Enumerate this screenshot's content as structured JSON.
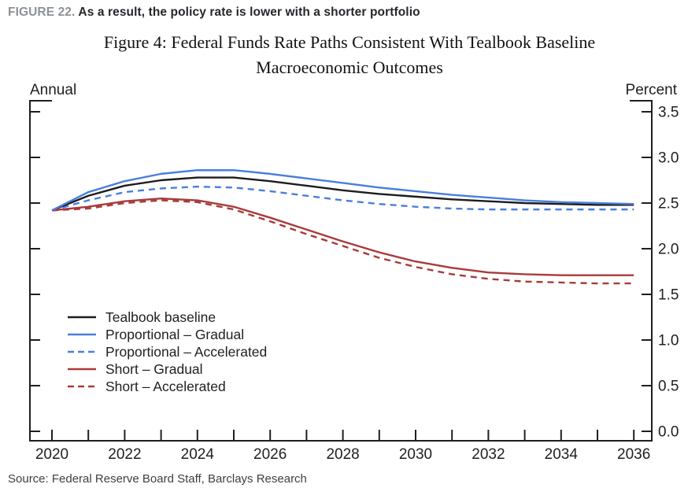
{
  "header": {
    "figure_label": "FIGURE 22.",
    "figure_title": "As a result, the policy rate is lower with a shorter portfolio"
  },
  "title": {
    "line1": "Figure 4: Federal Funds Rate Paths Consistent With Tealbook Baseline",
    "line2": "Macroeconomic Outcomes"
  },
  "source": "Source: Federal Reserve Board Staff, Barclays Research",
  "colors": {
    "axis": "#1f1f1f",
    "tick_text": "#1f1f1f",
    "figure_label": "#8d9196",
    "heading_text": "#24272b",
    "title_text": "#121212",
    "source_text": "#3d4043",
    "baseline_black": "#1c1c1c",
    "proportional_blue": "#4a7edd",
    "short_red": "#a93a3a"
  },
  "chart_data": {
    "type": "line",
    "title": "Figure 4: Federal Funds Rate Paths Consistent With Tealbook Baseline Macroeconomic Outcomes",
    "left_axis_label": "Annual",
    "right_axis_label": "Percent",
    "grid": false,
    "legend_position": "inside-left-middle",
    "x": [
      2020,
      2021,
      2022,
      2023,
      2024,
      2025,
      2026,
      2027,
      2028,
      2029,
      2030,
      2031,
      2032,
      2033,
      2034,
      2035,
      2036
    ],
    "xtick_labels": [
      "2020",
      "2022",
      "2024",
      "2026",
      "2028",
      "2030",
      "2032",
      "2034",
      "2036"
    ],
    "ylim": [
      0.0,
      3.5
    ],
    "yticks": [
      "0.0",
      "0.5",
      "1.0",
      "1.5",
      "2.0",
      "2.5",
      "3.0",
      "3.5"
    ],
    "series": [
      {
        "name": "Tealbook baseline",
        "color": "#1c1c1c",
        "dash": false,
        "values": [
          2.42,
          2.58,
          2.69,
          2.75,
          2.78,
          2.78,
          2.74,
          2.69,
          2.64,
          2.6,
          2.57,
          2.54,
          2.52,
          2.5,
          2.49,
          2.48,
          2.48
        ]
      },
      {
        "name": "Proportional – Gradual",
        "color": "#4a7edd",
        "dash": false,
        "values": [
          2.42,
          2.62,
          2.74,
          2.82,
          2.86,
          2.86,
          2.82,
          2.77,
          2.72,
          2.67,
          2.63,
          2.59,
          2.56,
          2.53,
          2.51,
          2.5,
          2.49
        ]
      },
      {
        "name": "Proportional – Accelerated",
        "color": "#4a7edd",
        "dash": true,
        "values": [
          2.42,
          2.53,
          2.62,
          2.66,
          2.68,
          2.67,
          2.63,
          2.58,
          2.53,
          2.49,
          2.46,
          2.44,
          2.43,
          2.43,
          2.43,
          2.43,
          2.43
        ]
      },
      {
        "name": "Short – Gradual",
        "color": "#a93a3a",
        "dash": false,
        "values": [
          2.42,
          2.46,
          2.52,
          2.55,
          2.53,
          2.46,
          2.34,
          2.21,
          2.08,
          1.96,
          1.86,
          1.79,
          1.74,
          1.72,
          1.71,
          1.71,
          1.71
        ]
      },
      {
        "name": "Short – Accelerated",
        "color": "#a93a3a",
        "dash": true,
        "values": [
          2.42,
          2.44,
          2.5,
          2.53,
          2.51,
          2.43,
          2.3,
          2.16,
          2.03,
          1.9,
          1.8,
          1.72,
          1.67,
          1.64,
          1.63,
          1.62,
          1.62
        ]
      }
    ]
  }
}
